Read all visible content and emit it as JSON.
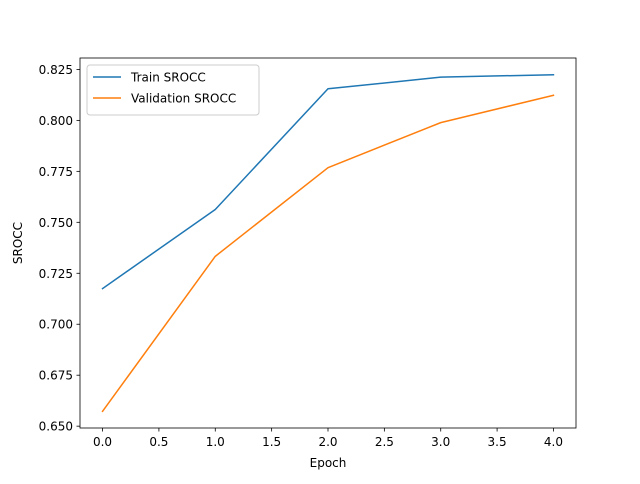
{
  "chart_data": {
    "type": "line",
    "title": "",
    "xlabel": "Epoch",
    "ylabel": "SROCC",
    "x": [
      0,
      1,
      2,
      3,
      4
    ],
    "xlim": [
      -0.2,
      4.2
    ],
    "ylim": [
      0.6491,
      0.8306
    ],
    "xticks": [
      "0.0",
      "0.5",
      "1.0",
      "1.5",
      "2.0",
      "2.5",
      "3.0",
      "3.5",
      "4.0"
    ],
    "yticks": [
      "0.650",
      "0.675",
      "0.700",
      "0.725",
      "0.750",
      "0.775",
      "0.800",
      "0.825"
    ],
    "grid": false,
    "legend_position": "upper-left",
    "series": [
      {
        "name": "Train SROCC",
        "color": "#1f77b4",
        "values": [
          0.7175,
          0.7563,
          0.8155,
          0.8212,
          0.8224
        ]
      },
      {
        "name": "Validation SROCC",
        "color": "#ff7f0e",
        "values": [
          0.6573,
          0.7333,
          0.7768,
          0.7989,
          0.8123
        ]
      }
    ]
  }
}
